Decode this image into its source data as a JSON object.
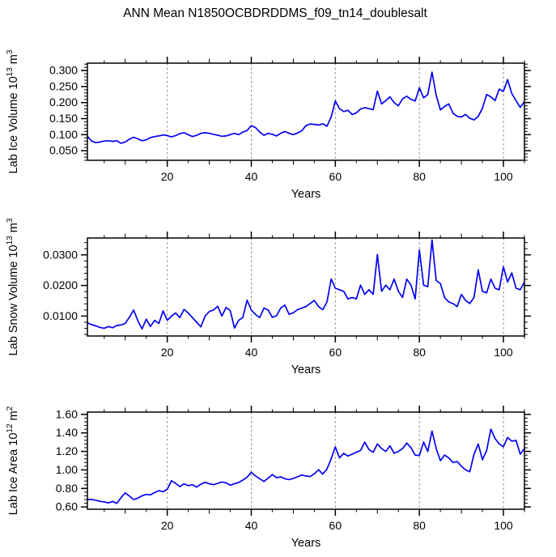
{
  "title": "ANN Mean N1850OCBDRDDMS_f09_tn14_doublesalt",
  "colors": {
    "line": "#0202f2",
    "grid": "#8c8c8c",
    "axis": "#000000",
    "background": "#ffffff"
  },
  "x_axis": {
    "label": "Years",
    "min": 1,
    "max": 105,
    "ticks": [
      20,
      40,
      60,
      80,
      100
    ],
    "tick_labels": [
      "20",
      "40",
      "60",
      "80",
      "100"
    ],
    "minor_step": 5
  },
  "chart_data": [
    {
      "type": "line",
      "name": "ice-volume",
      "xlabel": "Years",
      "ylabel": "Lab Ice Volume 10^13 m^3",
      "ylabel_parts": [
        [
          "Lab Ice Volume 10",
          false
        ],
        [
          "13",
          true
        ],
        [
          " m",
          false
        ],
        [
          "3",
          true
        ]
      ],
      "ylim": [
        0.02,
        0.323
      ],
      "yticks": [
        0.05,
        0.1,
        0.15,
        0.2,
        0.25,
        0.3
      ],
      "ytick_labels": [
        "0.050",
        "0.100",
        "0.150",
        "0.200",
        "0.250",
        "0.300"
      ],
      "yminor_step": 0.01,
      "grid": "vertical-dashed",
      "legend": "none",
      "values": [
        0.095,
        0.08,
        0.075,
        0.077,
        0.08,
        0.081,
        0.079,
        0.081,
        0.073,
        0.077,
        0.086,
        0.092,
        0.087,
        0.081,
        0.084,
        0.091,
        0.094,
        0.096,
        0.099,
        0.097,
        0.093,
        0.097,
        0.103,
        0.106,
        0.1,
        0.094,
        0.098,
        0.104,
        0.106,
        0.104,
        0.101,
        0.098,
        0.095,
        0.096,
        0.1,
        0.104,
        0.1,
        0.108,
        0.113,
        0.128,
        0.122,
        0.108,
        0.098,
        0.104,
        0.101,
        0.096,
        0.104,
        0.11,
        0.104,
        0.1,
        0.105,
        0.112,
        0.128,
        0.133,
        0.132,
        0.13,
        0.134,
        0.126,
        0.155,
        0.205,
        0.181,
        0.172,
        0.176,
        0.163,
        0.168,
        0.18,
        0.184,
        0.181,
        0.178,
        0.236,
        0.196,
        0.206,
        0.218,
        0.2,
        0.19,
        0.212,
        0.22,
        0.21,
        0.205,
        0.246,
        0.215,
        0.225,
        0.295,
        0.222,
        0.177,
        0.188,
        0.196,
        0.167,
        0.157,
        0.155,
        0.163,
        0.151,
        0.146,
        0.157,
        0.182,
        0.225,
        0.218,
        0.206,
        0.242,
        0.235,
        0.272,
        0.228,
        0.206,
        0.185,
        0.203
      ]
    },
    {
      "type": "line",
      "name": "snow-volume",
      "xlabel": "Years",
      "ylabel": "Lab Snow Volume 10^13 m^3",
      "ylabel_parts": [
        [
          "Lab Snow Volume 10",
          false
        ],
        [
          "13",
          true
        ],
        [
          " m",
          false
        ],
        [
          "3",
          true
        ]
      ],
      "ylim": [
        0.0035,
        0.0355
      ],
      "yticks": [
        0.01,
        0.02,
        0.03
      ],
      "ytick_labels": [
        "0.0100",
        "0.0200",
        "0.0300"
      ],
      "yminor_step": 0.002,
      "grid": "vertical-dashed",
      "legend": "none",
      "values": [
        0.0078,
        0.0072,
        0.0068,
        0.0063,
        0.006,
        0.0066,
        0.0062,
        0.0069,
        0.0071,
        0.0076,
        0.0096,
        0.012,
        0.0085,
        0.0058,
        0.009,
        0.0066,
        0.0086,
        0.0076,
        0.0117,
        0.0086,
        0.01,
        0.011,
        0.0095,
        0.0122,
        0.011,
        0.0095,
        0.008,
        0.0065,
        0.01,
        0.0115,
        0.012,
        0.0132,
        0.01,
        0.0128,
        0.0118,
        0.0061,
        0.0086,
        0.0096,
        0.0152,
        0.012,
        0.0105,
        0.0095,
        0.0126,
        0.012,
        0.0096,
        0.0101,
        0.0126,
        0.0136,
        0.0106,
        0.0111,
        0.0121,
        0.0126,
        0.0131,
        0.0141,
        0.0151,
        0.0131,
        0.0121,
        0.0146,
        0.0221,
        0.0191,
        0.0186,
        0.0181,
        0.0156,
        0.0161,
        0.0156,
        0.0201,
        0.0171,
        0.0186,
        0.0171,
        0.0301,
        0.0181,
        0.0201,
        0.0186,
        0.0221,
        0.0181,
        0.0161,
        0.0221,
        0.0201,
        0.0156,
        0.0316,
        0.0201,
        0.0196,
        0.0349,
        0.0216,
        0.0206,
        0.0161,
        0.0146,
        0.0141,
        0.0131,
        0.0171,
        0.0151,
        0.0141,
        0.0161,
        0.0251,
        0.0181,
        0.0176,
        0.0221,
        0.0191,
        0.0186,
        0.0261,
        0.0211,
        0.0241,
        0.0191,
        0.0186,
        0.0211
      ]
    },
    {
      "type": "line",
      "name": "ice-area",
      "xlabel": "Years",
      "ylabel": "Lab Ice Area 10^12 m^2",
      "ylabel_parts": [
        [
          "Lab Ice Area 10",
          false
        ],
        [
          "12",
          true
        ],
        [
          " m",
          false
        ],
        [
          "2",
          true
        ]
      ],
      "ylim": [
        0.575,
        1.625
      ],
      "yticks": [
        0.6,
        0.8,
        1.0,
        1.2,
        1.4,
        1.6
      ],
      "ytick_labels": [
        "0.60",
        "0.80",
        "1.00",
        "1.20",
        "1.40",
        "1.60"
      ],
      "yminor_step": 0.04,
      "grid": "vertical-dashed",
      "legend": "none",
      "values": [
        0.68,
        0.682,
        0.672,
        0.66,
        0.655,
        0.643,
        0.66,
        0.638,
        0.7,
        0.752,
        0.718,
        0.68,
        0.695,
        0.72,
        0.735,
        0.73,
        0.755,
        0.775,
        0.765,
        0.79,
        0.883,
        0.855,
        0.82,
        0.85,
        0.83,
        0.84,
        0.815,
        0.845,
        0.866,
        0.85,
        0.84,
        0.855,
        0.87,
        0.86,
        0.835,
        0.85,
        0.865,
        0.89,
        0.92,
        0.975,
        0.935,
        0.905,
        0.875,
        0.91,
        0.95,
        0.915,
        0.925,
        0.905,
        0.895,
        0.908,
        0.925,
        0.945,
        0.935,
        0.928,
        0.958,
        1.002,
        0.955,
        1.01,
        1.12,
        1.25,
        1.13,
        1.18,
        1.15,
        1.17,
        1.19,
        1.21,
        1.3,
        1.22,
        1.19,
        1.28,
        1.23,
        1.2,
        1.26,
        1.18,
        1.2,
        1.23,
        1.29,
        1.24,
        1.16,
        1.155,
        1.3,
        1.2,
        1.42,
        1.23,
        1.1,
        1.16,
        1.13,
        1.08,
        1.09,
        1.04,
        1.0,
        0.98,
        1.17,
        1.28,
        1.11,
        1.21,
        1.44,
        1.34,
        1.28,
        1.25,
        1.35,
        1.31,
        1.32,
        1.17,
        1.23
      ]
    }
  ]
}
